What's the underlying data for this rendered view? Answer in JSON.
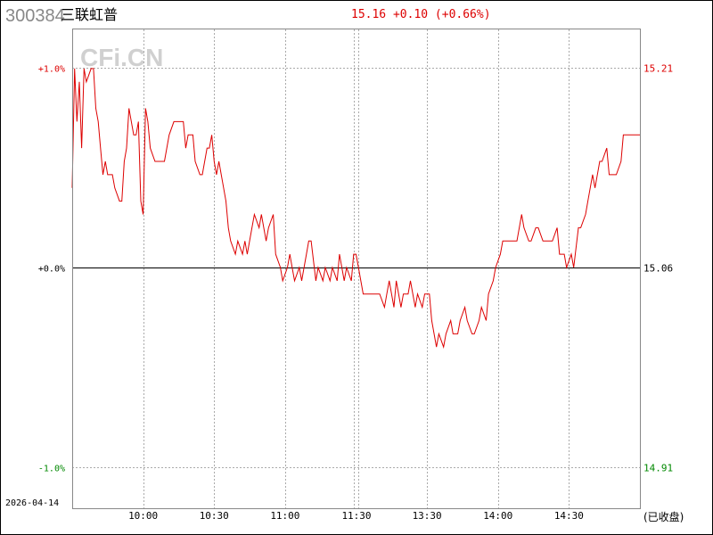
{
  "header": {
    "code": "300384",
    "name": "三联虹普",
    "quote": "15.16 +0.10 (+0.66%)"
  },
  "watermark": "CFi.CN",
  "date": "2026-04-14",
  "status": "(已收盘)",
  "colors": {
    "up": "#dd0000",
    "down": "#008800",
    "line": "#dd0000",
    "grid": "#aaaaaa",
    "zero": "#000000"
  },
  "chart_data": {
    "type": "line",
    "prev_close": 15.06,
    "ylim_price": [
      14.91,
      15.21
    ],
    "ylim_pct": [
      -1.0,
      1.0
    ],
    "left_ticks": [
      {
        "label": "+1.0%",
        "pct": 1.0,
        "color": "up"
      },
      {
        "label": "+0.0%",
        "pct": 0.0,
        "color": "zero"
      },
      {
        "label": "-1.0%",
        "pct": -1.0,
        "color": "down"
      }
    ],
    "right_ticks": [
      {
        "label": "15.21",
        "pct": 1.0,
        "color": "up"
      },
      {
        "label": "15.06",
        "pct": 0.0,
        "color": "zero"
      },
      {
        "label": "14.91",
        "pct": -1.0,
        "color": "down"
      }
    ],
    "x_ticks": [
      "10:00",
      "10:30",
      "11:00",
      "11:30",
      "13:30",
      "14:00",
      "14:30"
    ],
    "grid": true,
    "series": [
      [
        "09:30",
        15.12
      ],
      [
        "09:31",
        15.21
      ],
      [
        "09:32",
        15.17
      ],
      [
        "09:33",
        15.2
      ],
      [
        "09:34",
        15.15
      ],
      [
        "09:35",
        15.21
      ],
      [
        "09:36",
        15.2
      ],
      [
        "09:38",
        15.21
      ],
      [
        "09:39",
        15.21
      ],
      [
        "09:40",
        15.18
      ],
      [
        "09:41",
        15.17
      ],
      [
        "09:42",
        15.15
      ],
      [
        "09:43",
        15.13
      ],
      [
        "09:44",
        15.14
      ],
      [
        "09:45",
        15.13
      ],
      [
        "09:47",
        15.13
      ],
      [
        "09:48",
        15.12
      ],
      [
        "09:50",
        15.11
      ],
      [
        "09:51",
        15.11
      ],
      [
        "09:52",
        15.14
      ],
      [
        "09:53",
        15.15
      ],
      [
        "09:54",
        15.18
      ],
      [
        "09:56",
        15.16
      ],
      [
        "09:57",
        15.16
      ],
      [
        "09:58",
        15.17
      ],
      [
        "09:59",
        15.11
      ],
      [
        "10:00",
        15.1
      ],
      [
        "10:01",
        15.18
      ],
      [
        "10:02",
        15.17
      ],
      [
        "10:03",
        15.15
      ],
      [
        "10:05",
        15.14
      ],
      [
        "10:09",
        15.14
      ],
      [
        "10:11",
        15.16
      ],
      [
        "10:13",
        15.17
      ],
      [
        "10:17",
        15.17
      ],
      [
        "10:18",
        15.15
      ],
      [
        "10:19",
        15.16
      ],
      [
        "10:21",
        15.16
      ],
      [
        "10:22",
        15.14
      ],
      [
        "10:24",
        15.13
      ],
      [
        "10:25",
        15.13
      ],
      [
        "10:27",
        15.15
      ],
      [
        "10:28",
        15.15
      ],
      [
        "10:29",
        15.16
      ],
      [
        "10:30",
        15.14
      ],
      [
        "10:31",
        15.13
      ],
      [
        "10:32",
        15.14
      ],
      [
        "10:34",
        15.12
      ],
      [
        "10:35",
        15.11
      ],
      [
        "10:36",
        15.09
      ],
      [
        "10:37",
        15.08
      ],
      [
        "10:39",
        15.07
      ],
      [
        "10:40",
        15.08
      ],
      [
        "10:42",
        15.07
      ],
      [
        "10:43",
        15.08
      ],
      [
        "10:44",
        15.07
      ],
      [
        "10:46",
        15.09
      ],
      [
        "10:47",
        15.1
      ],
      [
        "10:49",
        15.09
      ],
      [
        "10:50",
        15.1
      ],
      [
        "10:52",
        15.08
      ],
      [
        "10:53",
        15.09
      ],
      [
        "10:55",
        15.1
      ],
      [
        "10:56",
        15.07
      ],
      [
        "10:58",
        15.06
      ],
      [
        "10:59",
        15.05
      ],
      [
        "11:01",
        15.06
      ],
      [
        "11:02",
        15.07
      ],
      [
        "11:03",
        15.06
      ],
      [
        "11:04",
        15.05
      ],
      [
        "11:06",
        15.06
      ],
      [
        "11:07",
        15.05
      ],
      [
        "11:09",
        15.07
      ],
      [
        "11:10",
        15.08
      ],
      [
        "11:11",
        15.08
      ],
      [
        "11:13",
        15.05
      ],
      [
        "11:14",
        15.06
      ],
      [
        "11:16",
        15.05
      ],
      [
        "11:17",
        15.06
      ],
      [
        "11:19",
        15.05
      ],
      [
        "11:20",
        15.06
      ],
      [
        "11:22",
        15.05
      ],
      [
        "11:23",
        15.07
      ],
      [
        "11:25",
        15.05
      ],
      [
        "11:26",
        15.06
      ],
      [
        "11:28",
        15.05
      ],
      [
        "11:29",
        15.07
      ],
      [
        "13:00",
        15.07
      ],
      [
        "13:01",
        15.06
      ],
      [
        "13:03",
        15.04
      ],
      [
        "13:10",
        15.04
      ],
      [
        "13:12",
        15.03
      ],
      [
        "13:13",
        15.04
      ],
      [
        "13:14",
        15.05
      ],
      [
        "13:16",
        15.03
      ],
      [
        "13:17",
        15.05
      ],
      [
        "13:19",
        15.03
      ],
      [
        "13:20",
        15.04
      ],
      [
        "13:22",
        15.04
      ],
      [
        "13:23",
        15.05
      ],
      [
        "13:25",
        15.03
      ],
      [
        "13:26",
        15.04
      ],
      [
        "13:28",
        15.03
      ],
      [
        "13:29",
        15.04
      ],
      [
        "13:31",
        15.04
      ],
      [
        "13:32",
        15.02
      ],
      [
        "13:34",
        15.0
      ],
      [
        "13:35",
        15.01
      ],
      [
        "13:37",
        15.0
      ],
      [
        "13:38",
        15.01
      ],
      [
        "13:40",
        15.02
      ],
      [
        "13:41",
        15.01
      ],
      [
        "13:43",
        15.01
      ],
      [
        "13:44",
        15.02
      ],
      [
        "13:46",
        15.03
      ],
      [
        "13:47",
        15.02
      ],
      [
        "13:49",
        15.01
      ],
      [
        "13:50",
        15.01
      ],
      [
        "13:52",
        15.02
      ],
      [
        "13:53",
        15.03
      ],
      [
        "13:55",
        15.02
      ],
      [
        "13:56",
        15.04
      ],
      [
        "13:58",
        15.05
      ],
      [
        "13:59",
        15.06
      ],
      [
        "14:01",
        15.07
      ],
      [
        "14:02",
        15.08
      ],
      [
        "14:08",
        15.08
      ],
      [
        "14:10",
        15.1
      ],
      [
        "14:11",
        15.09
      ],
      [
        "14:13",
        15.08
      ],
      [
        "14:14",
        15.08
      ],
      [
        "14:16",
        15.09
      ],
      [
        "14:17",
        15.09
      ],
      [
        "14:19",
        15.08
      ],
      [
        "14:23",
        15.08
      ],
      [
        "14:25",
        15.09
      ],
      [
        "14:26",
        15.07
      ],
      [
        "14:28",
        15.07
      ],
      [
        "14:29",
        15.06
      ],
      [
        "14:31",
        15.07
      ],
      [
        "14:32",
        15.06
      ],
      [
        "14:34",
        15.09
      ],
      [
        "14:35",
        15.09
      ],
      [
        "14:37",
        15.1
      ],
      [
        "14:38",
        15.11
      ],
      [
        "14:40",
        15.13
      ],
      [
        "14:41",
        15.12
      ],
      [
        "14:43",
        15.14
      ],
      [
        "14:44",
        15.14
      ],
      [
        "14:46",
        15.15
      ],
      [
        "14:47",
        15.13
      ],
      [
        "14:50",
        15.13
      ],
      [
        "14:52",
        15.14
      ],
      [
        "14:53",
        15.16
      ],
      [
        "15:00",
        15.16
      ]
    ]
  }
}
